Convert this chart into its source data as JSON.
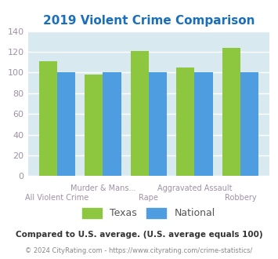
{
  "title": "2019 Violent Crime Comparison",
  "title_color": "#1a6fba",
  "categories_row1": [
    "",
    "Murder & Mans...",
    "",
    "Aggravated Assault",
    ""
  ],
  "categories_row2": [
    "All Violent Crime",
    "",
    "Rape",
    "",
    "Robbery"
  ],
  "texas_values": [
    111,
    98,
    121,
    105,
    124
  ],
  "national_values": [
    100,
    100,
    100,
    100,
    100
  ],
  "texas_color": "#8dc63f",
  "national_color": "#4d9de0",
  "ylim": [
    0,
    140
  ],
  "yticks": [
    0,
    20,
    40,
    60,
    80,
    100,
    120,
    140
  ],
  "plot_bg_color": "#d8eaf0",
  "fig_bg_color": "#ffffff",
  "grid_color": "#ffffff",
  "xlabel_color": "#a090a8",
  "tick_color": "#a090a8",
  "legend_texas": "Texas",
  "legend_national": "National",
  "footer_line1": "Compared to U.S. average. (U.S. average equals 100)",
  "footer_line1_color": "#333333",
  "footer_line2_text": "© 2024 CityRating.com - ",
  "footer_line2_url": "https://www.cityrating.com/crime-statistics/",
  "footer_color2_text": "#888888",
  "footer_color2_url": "#4d9de0"
}
